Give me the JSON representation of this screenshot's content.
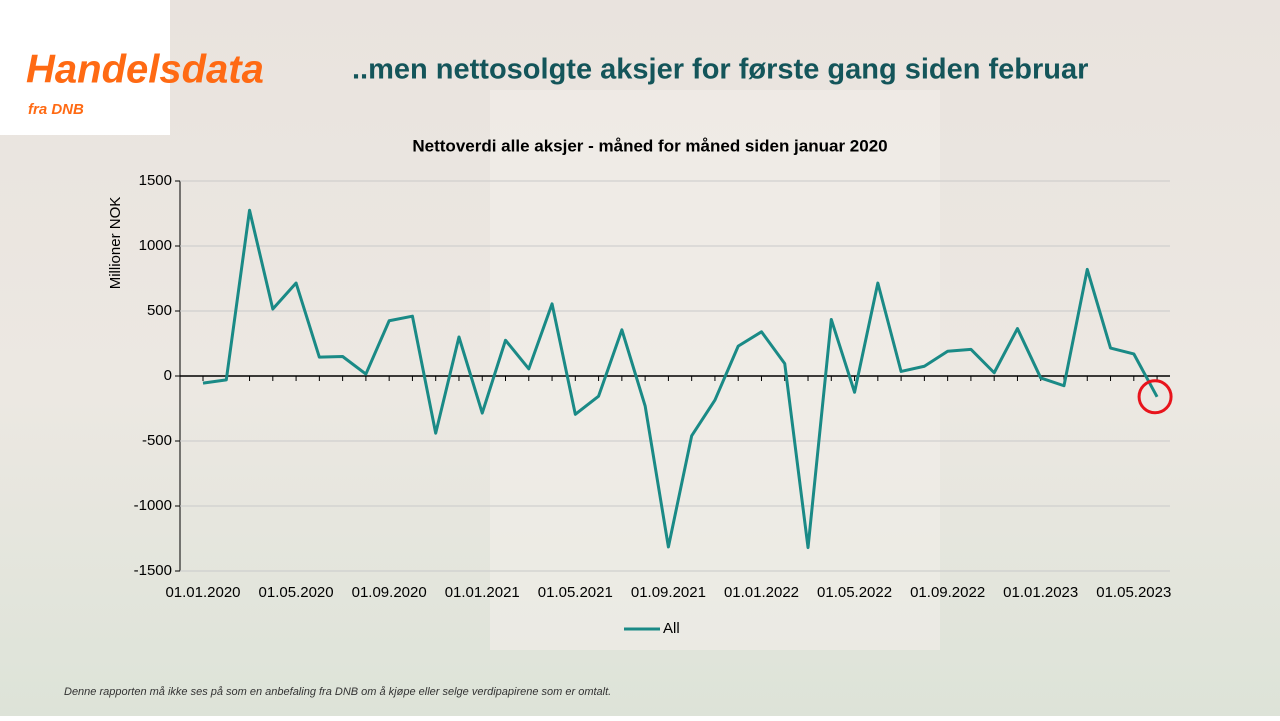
{
  "header": {
    "brand": "Handelsdata",
    "sub": "fra DNB",
    "headline": "..men nettosolgte aksjer for første gang siden februar"
  },
  "chart_data": {
    "type": "line",
    "title": "Nettoverdi alle aksjer - måned for måned siden januar 2020",
    "ylabel": "Millioner NOK",
    "categories": [
      "01.01.2020",
      null,
      null,
      null,
      "01.05.2020",
      null,
      null,
      null,
      "01.09.2020",
      null,
      null,
      null,
      "01.01.2021",
      null,
      null,
      null,
      "01.05.2021",
      null,
      null,
      null,
      "01.09.2021",
      null,
      null,
      null,
      "01.01.2022",
      null,
      null,
      null,
      "01.05.2022",
      null,
      null,
      null,
      "01.09.2022",
      null,
      null,
      null,
      "01.01.2023",
      null,
      null,
      null,
      "01.05.2023",
      null
    ],
    "series": [
      {
        "name": "All",
        "color": "#1a8a86",
        "values": [
          -55,
          -30,
          1275,
          515,
          715,
          145,
          150,
          15,
          425,
          460,
          -440,
          300,
          -285,
          275,
          55,
          555,
          -295,
          -155,
          355,
          -230,
          -1315,
          -460,
          -185,
          230,
          340,
          95,
          -1320,
          435,
          -125,
          715,
          35,
          75,
          190,
          205,
          25,
          365,
          -15,
          -75,
          820,
          215,
          170,
          -160
        ]
      }
    ],
    "ylim": [
      -1500,
      1500
    ],
    "yticks": [
      -1500,
      -1000,
      -500,
      0,
      500,
      1000,
      1500
    ],
    "grid": true,
    "legend": "bottom"
  },
  "footnote": "Denne rapporten må ikke ses på som en anbefaling fra DNB om å kjøpe eller selge verdipapirene som er omtalt."
}
